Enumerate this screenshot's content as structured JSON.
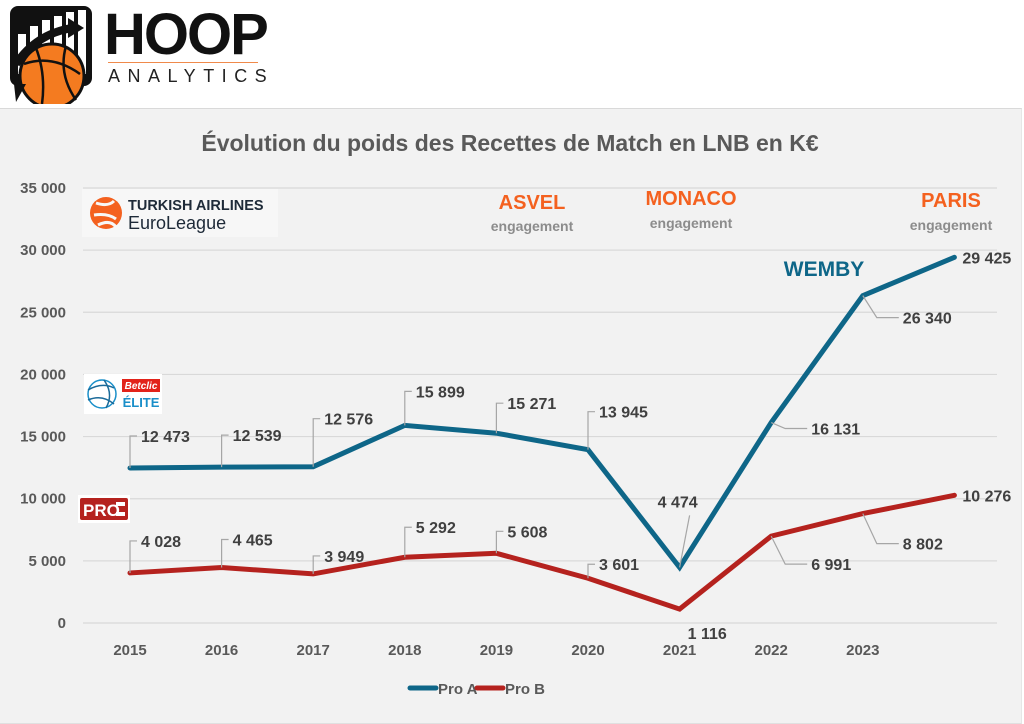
{
  "brand": {
    "name": "HOOP",
    "tagline": "ANALYTICS",
    "colors": {
      "orange": "#f47b20",
      "black": "#111111"
    }
  },
  "logos": {
    "euroleague": {
      "line1": "TURKISH AIRLINES",
      "line2": "EuroLeague",
      "color": "#f4611f"
    },
    "betclic_elite": {
      "line1": "Betclic",
      "line2": "ÉLITE",
      "red": "#e2231a",
      "blue": "#1a8fc9"
    },
    "pro_b": {
      "text": "PRO",
      "color": "#b5221e"
    }
  },
  "annotations": [
    {
      "main": "ASVEL",
      "sub": "engagement"
    },
    {
      "main": "MONACO",
      "sub": "engagement"
    },
    {
      "main": "PARIS",
      "sub": "engagement"
    },
    {
      "main": "WEMBY",
      "sub": ""
    }
  ],
  "chart_data": {
    "type": "line",
    "title": "Évolution du poids des Recettes de Match en LNB en K€",
    "xlabel": "",
    "ylabel": "",
    "x": [
      "2015",
      "2016",
      "2017",
      "2018",
      "2019",
      "2020",
      "2021",
      "2022",
      "2023",
      ""
    ],
    "ylim": [
      0,
      35000
    ],
    "yticks": [
      0,
      5000,
      10000,
      15000,
      20000,
      25000,
      30000,
      35000
    ],
    "ytick_labels": [
      "0",
      "5 000",
      "10 000",
      "15 000",
      "20 000",
      "25 000",
      "30 000",
      "35 000"
    ],
    "grid": true,
    "legend_position": "bottom",
    "series": [
      {
        "name": "Pro A",
        "color": "#0e6688",
        "values": [
          12473,
          12539,
          12576,
          15899,
          15271,
          13945,
          4474,
          16131,
          26340,
          29425
        ],
        "labels": [
          "12 473",
          "12 539",
          "12 576",
          "15 899",
          "15 271",
          "13 945",
          "4 474",
          "16 131",
          "26 340",
          "29 425"
        ]
      },
      {
        "name": "Pro B",
        "color": "#b5221e",
        "values": [
          4028,
          4465,
          3949,
          5292,
          5608,
          3601,
          1116,
          6991,
          8802,
          10276
        ],
        "labels": [
          "4 028",
          "4 465",
          "3 949",
          "5 292",
          "5 608",
          "3 601",
          "1 116",
          "6 991",
          "8 802",
          "10 276"
        ]
      }
    ]
  }
}
